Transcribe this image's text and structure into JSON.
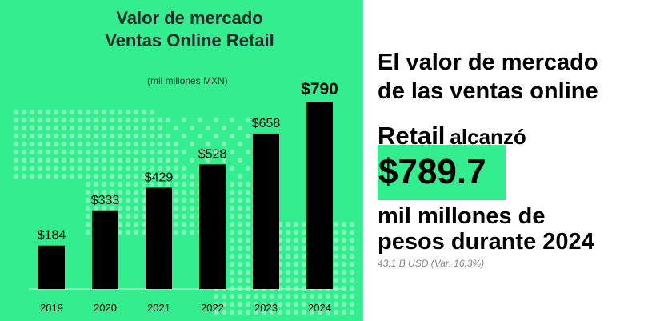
{
  "chart_data": {
    "type": "bar",
    "title": "Valor de mercado",
    "subtitle": "Ventas Online Retail",
    "unit_note": "(mil millones MXN)",
    "categories": [
      "2019",
      "2020",
      "2021",
      "2022",
      "2023",
      "2024"
    ],
    "values": [
      184,
      333,
      429,
      528,
      658,
      790
    ],
    "value_labels": [
      "$184",
      "$333",
      "$429",
      "$528",
      "$658",
      "$790"
    ],
    "highlight_last": true,
    "ylim": [
      0,
      850
    ],
    "grid": false,
    "bar_color": "#000000",
    "background_color": "#33ee8f"
  },
  "headline": {
    "line1": "El valor de mercado",
    "line2": "de las ventas online",
    "retail": "Retail",
    "alcanzo": "alcanzó",
    "value": "$789.7",
    "line3": "mil millones de",
    "line4": "pesos durante 2024",
    "note": "43.1 B USD (Var. 16.3%)"
  },
  "colors": {
    "accent": "#33ee8f",
    "text": "#000000"
  }
}
